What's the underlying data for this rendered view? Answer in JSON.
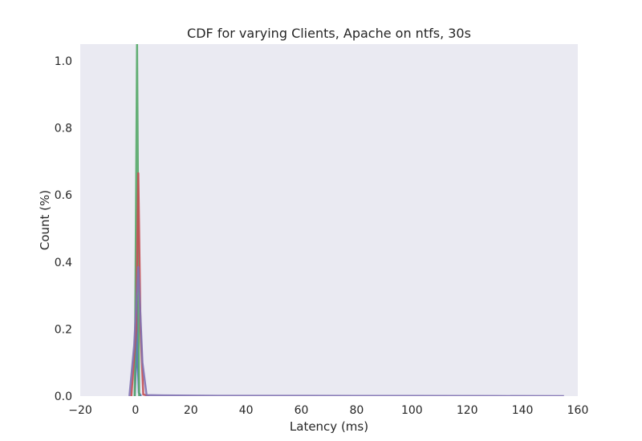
{
  "chart_data": {
    "type": "line",
    "title": "CDF for varying Clients, Apache on ntfs, 30s",
    "xlabel": "Latency (ms)",
    "ylabel": "Count (%)",
    "xlim": [
      -20,
      160
    ],
    "ylim": [
      0,
      1.05
    ],
    "xticks": [
      "−20",
      "0",
      "20",
      "40",
      "60",
      "80",
      "100",
      "120",
      "140",
      "160"
    ],
    "xtick_values": [
      -20,
      0,
      20,
      40,
      60,
      80,
      100,
      120,
      140,
      160
    ],
    "yticks": [
      "0.0",
      "0.2",
      "0.4",
      "0.6",
      "0.8",
      "1.0"
    ],
    "ytick_values": [
      0,
      0.2,
      0.4,
      0.6,
      0.8,
      1.0
    ],
    "grid": false,
    "background": "#EAEAF2",
    "series": [
      {
        "color": "#4C72B0",
        "x": [
          -0.3,
          0.2,
          0.5,
          0.8,
          1.2,
          2
        ],
        "y": [
          0,
          0.1,
          0.3,
          0.1,
          0.01,
          0
        ]
      },
      {
        "color": "#55A868",
        "x": [
          -0.3,
          0.2,
          0.55,
          0.9,
          1.3
        ],
        "y": [
          0,
          0.6,
          1.05,
          0.6,
          0
        ]
      },
      {
        "color": "#C44E52",
        "x": [
          -1.5,
          0.2,
          1.0,
          1.8,
          2.8,
          5
        ],
        "y": [
          0,
          0.2,
          0.665,
          0.2,
          0.005,
          0
        ]
      },
      {
        "color": "#8172B2",
        "x": [
          -2.2,
          -0.5,
          1.0,
          2.5,
          4,
          10,
          30,
          50,
          80,
          100,
          130,
          155
        ],
        "y": [
          0,
          0.15,
          0.385,
          0.1,
          0.003,
          0.002,
          0.001,
          0.001,
          0.0005,
          0.0005,
          0.0002,
          0
        ]
      }
    ]
  }
}
